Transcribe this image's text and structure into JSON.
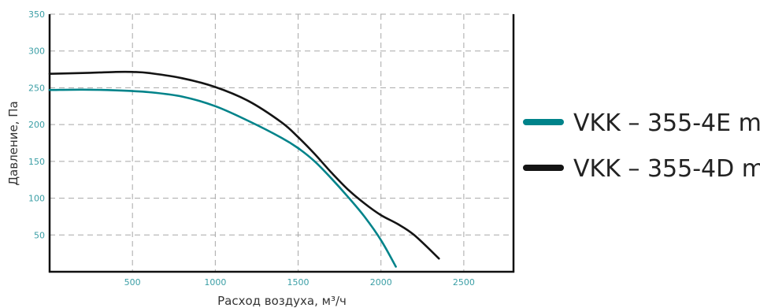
{
  "colors": {
    "series_teal": "#00838a",
    "series_black": "#141414",
    "tick_text": "#3a9ea5",
    "grid": "#a8a8a8",
    "axis": "#111111"
  },
  "chart_data": {
    "type": "line",
    "title": "",
    "xlabel": "Расход воздуха, м³/ч",
    "ylabel": "Давление, Па",
    "xlim": [
      0,
      2800
    ],
    "ylim": [
      0,
      350
    ],
    "xticks": [
      500,
      1000,
      1500,
      2000,
      2500
    ],
    "yticks": [
      50,
      100,
      150,
      200,
      250,
      300,
      350
    ],
    "xtick_labels": [
      "500",
      "1000",
      "1500",
      "2000",
      "2500"
    ],
    "ytick_labels": [
      "50",
      "100",
      "150",
      "200",
      "250",
      "300",
      "350"
    ],
    "grid": true,
    "legend_position": "right",
    "series": [
      {
        "name": "VKK – 355-4E m",
        "color": "#00838a",
        "x": [
          0,
          200,
          400,
          600,
          800,
          1000,
          1200,
          1400,
          1500,
          1600,
          1700,
          1800,
          1900,
          2000,
          2090
        ],
        "y": [
          247,
          247.5,
          246.5,
          244,
          238,
          225,
          205,
          182,
          168,
          150,
          127,
          102,
          75,
          43,
          7
        ]
      },
      {
        "name": "VKK – 355-4D m",
        "color": "#141414",
        "x": [
          0,
          200,
          400,
          500,
          600,
          800,
          1000,
          1200,
          1400,
          1500,
          1600,
          1700,
          1800,
          1900,
          2000,
          2100,
          2200,
          2350
        ],
        "y": [
          269,
          270,
          271.5,
          271.5,
          270,
          263,
          251,
          232,
          203,
          183,
          160,
          135,
          112,
          93,
          77,
          65,
          50,
          18
        ]
      }
    ]
  }
}
